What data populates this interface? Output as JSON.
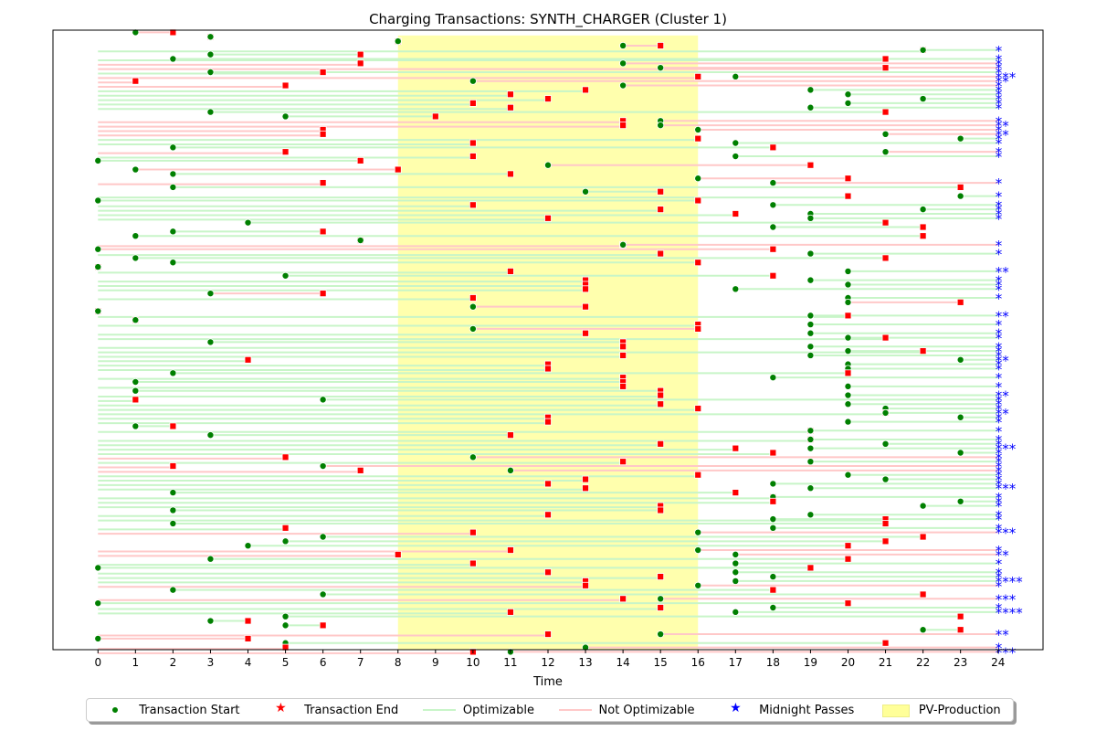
{
  "chart_data": {
    "type": "timeline",
    "title": "Charging Transactions: SYNTH_CHARGER (Cluster 1)",
    "xlabel": "Time",
    "ylabel": "",
    "xlim": [
      -1.2,
      25.2
    ],
    "ylim": [
      0,
      140
    ],
    "x_ticks": [
      0,
      1,
      2,
      3,
      4,
      5,
      6,
      7,
      8,
      9,
      10,
      11,
      12,
      13,
      14,
      15,
      16,
      17,
      18,
      19,
      20,
      21,
      22,
      23,
      24
    ],
    "pv_production": {
      "start": 8,
      "end": 16
    },
    "colors": {
      "start_marker": "#008000",
      "end_marker": "#ff0000",
      "optimizable": "#c8f5c8",
      "not_optimizable": "#ffc8c8",
      "midnight": "#0000ff",
      "pv": "#ffff99"
    },
    "legend": [
      "Transaction Start",
      "Transaction End",
      "Optimizable",
      "Not Optimizable",
      "Midnight Passes",
      "PV-Production"
    ],
    "midnight_marker_text": "*",
    "transactions": [
      {
        "row": 1,
        "start": 1,
        "end": 2,
        "opt": false,
        "mid": 0
      },
      {
        "row": 2,
        "start": 3,
        "end": 3,
        "opt": false,
        "mid": 0
      },
      {
        "row": 3,
        "start": 8,
        "end": 8,
        "opt": false,
        "mid": 0
      },
      {
        "row": 4,
        "start": 14,
        "end": 15,
        "opt": false,
        "mid": 0
      },
      {
        "row": 5,
        "start": 22,
        "end": 22,
        "opt": true,
        "mid": 1
      },
      {
        "row": 6,
        "start": 3,
        "end": 7,
        "opt": true,
        "mid": 0
      },
      {
        "row": 7,
        "start": 2,
        "end": 21,
        "opt": true,
        "mid": 1
      },
      {
        "row": 8,
        "start": 14,
        "end": 7,
        "opt": false,
        "mid": 1
      },
      {
        "row": 9,
        "start": 15,
        "end": 21,
        "opt": false,
        "mid": 1
      },
      {
        "row": 10,
        "start": 3,
        "end": 6,
        "opt": true,
        "mid": 1
      },
      {
        "row": 11,
        "start": 17,
        "end": 16,
        "opt": false,
        "mid": 3
      },
      {
        "row": 12,
        "start": 10,
        "end": 1,
        "opt": false,
        "mid": 2
      },
      {
        "row": 13,
        "start": 14,
        "end": 5,
        "opt": false,
        "mid": 1
      },
      {
        "row": 14,
        "start": 19,
        "end": 13,
        "opt": true,
        "mid": 1
      },
      {
        "row": 15,
        "start": 20,
        "end": 11,
        "opt": true,
        "mid": 1
      },
      {
        "row": 16,
        "start": 22,
        "end": 12,
        "opt": true,
        "mid": 1
      },
      {
        "row": 17,
        "start": 20,
        "end": 10,
        "opt": true,
        "mid": 1
      },
      {
        "row": 18,
        "start": 19,
        "end": 11,
        "opt": true,
        "mid": 1
      },
      {
        "row": 19,
        "start": 3,
        "end": 21,
        "opt": true,
        "mid": 0
      },
      {
        "row": 20,
        "start": 5,
        "end": 9,
        "opt": true,
        "mid": 0
      },
      {
        "row": 21,
        "start": 15,
        "end": 14,
        "opt": false,
        "mid": 1
      },
      {
        "row": 22,
        "start": 15,
        "end": 14,
        "opt": false,
        "mid": 2
      },
      {
        "row": 23,
        "start": 16,
        "end": 6,
        "opt": false,
        "mid": 1
      },
      {
        "row": 24,
        "start": 21,
        "end": 6,
        "opt": false,
        "mid": 2
      },
      {
        "row": 25,
        "start": 23,
        "end": 16,
        "opt": true,
        "mid": 1
      },
      {
        "row": 26,
        "start": 17,
        "end": 10,
        "opt": true,
        "mid": 1
      },
      {
        "row": 27,
        "start": 2,
        "end": 18,
        "opt": true,
        "mid": 0
      },
      {
        "row": 28,
        "start": 21,
        "end": 5,
        "opt": false,
        "mid": 1
      },
      {
        "row": 29,
        "start": 17,
        "end": 10,
        "opt": true,
        "mid": 1
      },
      {
        "row": 30,
        "start": 0,
        "end": 7,
        "opt": true,
        "mid": 0
      },
      {
        "row": 31,
        "start": 12,
        "end": 19,
        "opt": false,
        "mid": 0
      },
      {
        "row": 32,
        "start": 1,
        "end": 8,
        "opt": false,
        "mid": 0
      },
      {
        "row": 33,
        "start": 2,
        "end": 11,
        "opt": true,
        "mid": 0
      },
      {
        "row": 34,
        "start": 16,
        "end": 20,
        "opt": false,
        "mid": 0
      },
      {
        "row": 35,
        "start": 18,
        "end": 6,
        "opt": false,
        "mid": 1
      },
      {
        "row": 36,
        "start": 2,
        "end": 23,
        "opt": true,
        "mid": 0
      },
      {
        "row": 37,
        "start": 13,
        "end": 15,
        "opt": true,
        "mid": 0
      },
      {
        "row": 38,
        "start": 23,
        "end": 20,
        "opt": true,
        "mid": 1
      },
      {
        "row": 39,
        "start": 0,
        "end": 16,
        "opt": true,
        "mid": 0
      },
      {
        "row": 40,
        "start": 18,
        "end": 10,
        "opt": true,
        "mid": 1
      },
      {
        "row": 41,
        "start": 22,
        "end": 15,
        "opt": true,
        "mid": 1
      },
      {
        "row": 42,
        "start": 19,
        "end": 17,
        "opt": true,
        "mid": 1
      },
      {
        "row": 43,
        "start": 19,
        "end": 12,
        "opt": true,
        "mid": 1
      },
      {
        "row": 44,
        "start": 4,
        "end": 21,
        "opt": true,
        "mid": 0
      },
      {
        "row": 45,
        "start": 18,
        "end": 22,
        "opt": true,
        "mid": 0
      },
      {
        "row": 46,
        "start": 2,
        "end": 6,
        "opt": true,
        "mid": 0
      },
      {
        "row": 47,
        "start": 1,
        "end": 22,
        "opt": true,
        "mid": 0
      },
      {
        "row": 48,
        "start": 7,
        "end": 7,
        "opt": false,
        "mid": 0
      },
      {
        "row": 49,
        "start": 14,
        "end": 14,
        "opt": false,
        "mid": 1
      },
      {
        "row": 50,
        "start": 0,
        "end": 18,
        "opt": false,
        "mid": 0
      },
      {
        "row": 51,
        "start": 19,
        "end": 15,
        "opt": true,
        "mid": 1
      },
      {
        "row": 52,
        "start": 1,
        "end": 21,
        "opt": true,
        "mid": 0
      },
      {
        "row": 53,
        "start": 2,
        "end": 16,
        "opt": true,
        "mid": 0
      },
      {
        "row": 54,
        "start": 0,
        "end": 0,
        "opt": false,
        "mid": 0
      },
      {
        "row": 55,
        "start": 20,
        "end": 11,
        "opt": true,
        "mid": 2
      },
      {
        "row": 56,
        "start": 5,
        "end": 18,
        "opt": true,
        "mid": 0
      },
      {
        "row": 57,
        "start": 19,
        "end": 13,
        "opt": true,
        "mid": 1
      },
      {
        "row": 58,
        "start": 20,
        "end": 13,
        "opt": true,
        "mid": 1
      },
      {
        "row": 59,
        "start": 17,
        "end": 13,
        "opt": true,
        "mid": 1
      },
      {
        "row": 60,
        "start": 3,
        "end": 6,
        "opt": false,
        "mid": 0
      },
      {
        "row": 61,
        "start": 20,
        "end": 10,
        "opt": true,
        "mid": 1
      },
      {
        "row": 62,
        "start": 20,
        "end": 23,
        "opt": false,
        "mid": 0
      },
      {
        "row": 63,
        "start": 10,
        "end": 13,
        "opt": false,
        "mid": 0
      },
      {
        "row": 64,
        "start": 0,
        "end": 0,
        "opt": false,
        "mid": 0
      },
      {
        "row": 65,
        "start": 19,
        "end": 20,
        "opt": true,
        "mid": 2
      },
      {
        "row": 66,
        "start": 1,
        "end": 1,
        "opt": false,
        "mid": 0
      },
      {
        "row": 67,
        "start": 19,
        "end": 16,
        "opt": true,
        "mid": 1
      },
      {
        "row": 68,
        "start": 10,
        "end": 16,
        "opt": false,
        "mid": 0
      },
      {
        "row": 69,
        "start": 19,
        "end": 13,
        "opt": true,
        "mid": 1
      },
      {
        "row": 70,
        "start": 20,
        "end": 21,
        "opt": true,
        "mid": 1
      },
      {
        "row": 71,
        "start": 3,
        "end": 14,
        "opt": true,
        "mid": 0
      },
      {
        "row": 72,
        "start": 19,
        "end": 14,
        "opt": true,
        "mid": 1
      },
      {
        "row": 73,
        "start": 20,
        "end": 22,
        "opt": true,
        "mid": 1
      },
      {
        "row": 74,
        "start": 19,
        "end": 14,
        "opt": true,
        "mid": 1
      },
      {
        "row": 75,
        "start": 23,
        "end": 4,
        "opt": true,
        "mid": 2
      },
      {
        "row": 76,
        "start": 20,
        "end": 12,
        "opt": true,
        "mid": 1
      },
      {
        "row": 77,
        "start": 20,
        "end": 12,
        "opt": true,
        "mid": 1
      },
      {
        "row": 78,
        "start": 2,
        "end": 20,
        "opt": true,
        "mid": 0
      },
      {
        "row": 79,
        "start": 18,
        "end": 14,
        "opt": true,
        "mid": 1
      },
      {
        "row": 80,
        "start": 1,
        "end": 14,
        "opt": true,
        "mid": 0
      },
      {
        "row": 81,
        "start": 20,
        "end": 14,
        "opt": true,
        "mid": 1
      },
      {
        "row": 82,
        "start": 1,
        "end": 15,
        "opt": true,
        "mid": 0
      },
      {
        "row": 83,
        "start": 20,
        "end": 15,
        "opt": true,
        "mid": 2
      },
      {
        "row": 84,
        "start": 6,
        "end": 1,
        "opt": true,
        "mid": 1
      },
      {
        "row": 85,
        "start": 20,
        "end": 15,
        "opt": true,
        "mid": 1
      },
      {
        "row": 86,
        "start": 21,
        "end": 16,
        "opt": true,
        "mid": 1
      },
      {
        "row": 87,
        "start": 21,
        "end": 21,
        "opt": true,
        "mid": 2
      },
      {
        "row": 88,
        "start": 23,
        "end": 12,
        "opt": true,
        "mid": 1
      },
      {
        "row": 89,
        "start": 20,
        "end": 12,
        "opt": true,
        "mid": 1
      },
      {
        "row": 90,
        "start": 1,
        "end": 2,
        "opt": true,
        "mid": 0
      },
      {
        "row": 91,
        "start": 19,
        "end": 19,
        "opt": true,
        "mid": 1
      },
      {
        "row": 92,
        "start": 3,
        "end": 11,
        "opt": true,
        "mid": 0
      },
      {
        "row": 93,
        "start": 19,
        "end": 19,
        "opt": true,
        "mid": 1
      },
      {
        "row": 94,
        "start": 21,
        "end": 15,
        "opt": true,
        "mid": 1
      },
      {
        "row": 95,
        "start": 19,
        "end": 17,
        "opt": true,
        "mid": 3
      },
      {
        "row": 96,
        "start": 23,
        "end": 18,
        "opt": true,
        "mid": 1
      },
      {
        "row": 97,
        "start": 10,
        "end": 5,
        "opt": false,
        "mid": 1
      },
      {
        "row": 98,
        "start": 19,
        "end": 14,
        "opt": true,
        "mid": 1
      },
      {
        "row": 99,
        "start": 6,
        "end": 2,
        "opt": false,
        "mid": 1
      },
      {
        "row": 100,
        "start": 11,
        "end": 7,
        "opt": false,
        "mid": 1
      },
      {
        "row": 101,
        "start": 20,
        "end": 16,
        "opt": true,
        "mid": 1
      },
      {
        "row": 102,
        "start": 21,
        "end": 13,
        "opt": true,
        "mid": 1
      },
      {
        "row": 103,
        "start": 18,
        "end": 12,
        "opt": true,
        "mid": 1
      },
      {
        "row": 104,
        "start": 19,
        "end": 13,
        "opt": true,
        "mid": 3
      },
      {
        "row": 105,
        "start": 2,
        "end": 17,
        "opt": true,
        "mid": 0
      },
      {
        "row": 106,
        "start": 18,
        "end": 18,
        "opt": true,
        "mid": 1
      },
      {
        "row": 107,
        "start": 23,
        "end": 18,
        "opt": true,
        "mid": 1
      },
      {
        "row": 108,
        "start": 22,
        "end": 15,
        "opt": true,
        "mid": 1
      },
      {
        "row": 109,
        "start": 2,
        "end": 15,
        "opt": true,
        "mid": 0
      },
      {
        "row": 110,
        "start": 19,
        "end": 12,
        "opt": true,
        "mid": 1
      },
      {
        "row": 111,
        "start": 18,
        "end": 21,
        "opt": true,
        "mid": 1
      },
      {
        "row": 112,
        "start": 2,
        "end": 21,
        "opt": true,
        "mid": 0
      },
      {
        "row": 113,
        "start": 18,
        "end": 5,
        "opt": true,
        "mid": 1
      },
      {
        "row": 114,
        "start": 16,
        "end": 10,
        "opt": false,
        "mid": 3
      },
      {
        "row": 115,
        "start": 6,
        "end": 22,
        "opt": true,
        "mid": 0
      },
      {
        "row": 116,
        "start": 5,
        "end": 21,
        "opt": true,
        "mid": 0
      },
      {
        "row": 117,
        "start": 4,
        "end": 20,
        "opt": true,
        "mid": 0
      },
      {
        "row": 118,
        "start": 16,
        "end": 11,
        "opt": false,
        "mid": 1
      },
      {
        "row": 119,
        "start": 17,
        "end": 8,
        "opt": false,
        "mid": 2
      },
      {
        "row": 120,
        "start": 3,
        "end": 20,
        "opt": true,
        "mid": 0
      },
      {
        "row": 121,
        "start": 17,
        "end": 10,
        "opt": true,
        "mid": 1
      },
      {
        "row": 122,
        "start": 0,
        "end": 19,
        "opt": true,
        "mid": 0
      },
      {
        "row": 123,
        "start": 17,
        "end": 12,
        "opt": true,
        "mid": 1
      },
      {
        "row": 124,
        "start": 18,
        "end": 15,
        "opt": true,
        "mid": 1
      },
      {
        "row": 125,
        "start": 17,
        "end": 13,
        "opt": true,
        "mid": 4
      },
      {
        "row": 126,
        "start": 16,
        "end": 13,
        "opt": false,
        "mid": 1
      },
      {
        "row": 127,
        "start": 2,
        "end": 18,
        "opt": true,
        "mid": 0
      },
      {
        "row": 128,
        "start": 6,
        "end": 22,
        "opt": true,
        "mid": 0
      },
      {
        "row": 129,
        "start": 15,
        "end": 14,
        "opt": false,
        "mid": 3
      },
      {
        "row": 130,
        "start": 0,
        "end": 20,
        "opt": true,
        "mid": 0
      },
      {
        "row": 131,
        "start": 18,
        "end": 15,
        "opt": true,
        "mid": 1
      },
      {
        "row": 132,
        "start": 17,
        "end": 11,
        "opt": true,
        "mid": 4
      },
      {
        "row": 133,
        "start": 5,
        "end": 23,
        "opt": true,
        "mid": 0
      },
      {
        "row": 134,
        "start": 3,
        "end": 4,
        "opt": true,
        "mid": 0
      },
      {
        "row": 135,
        "start": 5,
        "end": 6,
        "opt": true,
        "mid": 0
      },
      {
        "row": 136,
        "start": 22,
        "end": 23,
        "opt": true,
        "mid": 0
      },
      {
        "row": 137,
        "start": 15,
        "end": 12,
        "opt": false,
        "mid": 2
      },
      {
        "row": 138,
        "start": 0,
        "end": 4,
        "opt": false,
        "mid": 0
      },
      {
        "row": 139,
        "start": 5,
        "end": 21,
        "opt": true,
        "mid": 0
      },
      {
        "row": 140,
        "start": 13,
        "end": 5,
        "opt": false,
        "mid": 1
      },
      {
        "row": 141,
        "start": 11,
        "end": 10,
        "opt": false,
        "mid": 3
      }
    ]
  }
}
